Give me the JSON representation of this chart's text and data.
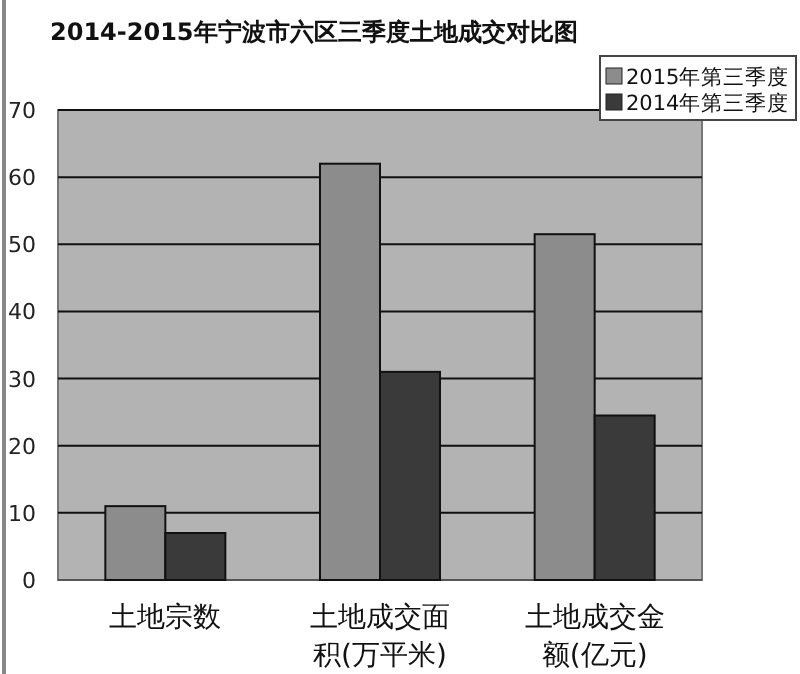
{
  "chart_data": {
    "type": "bar",
    "title": "2014-2015年宁波市六区三季度土地成交对比图",
    "categories": [
      "土地宗数",
      "土地成交面积(万平米)",
      "土地成交金额(亿元)"
    ],
    "series": [
      {
        "name": "2015年第三季度",
        "color": "#8c8c8c",
        "values": [
          11,
          62,
          51.5
        ]
      },
      {
        "name": "2014年第三季度",
        "color": "#3a3a3a",
        "values": [
          7,
          31,
          24.5
        ]
      }
    ],
    "ylim": [
      0,
      70
    ],
    "yticks": [
      0,
      10,
      20,
      30,
      40,
      50,
      60,
      70
    ],
    "grid": "y",
    "legend": "top right"
  }
}
